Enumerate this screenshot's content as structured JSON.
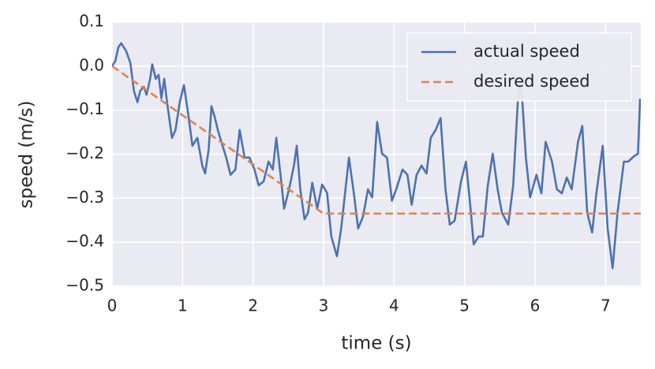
{
  "chart_data": {
    "type": "line",
    "x_label": "time (s)",
    "y_label": "speed (m/s)",
    "xlim": [
      0,
      7.5
    ],
    "ylim": [
      -0.5,
      0.1
    ],
    "xticks": [
      0,
      1,
      2,
      3,
      4,
      5,
      6,
      7
    ],
    "yticks": [
      {
        "value": -0.5,
        "label": "−0.5"
      },
      {
        "value": -0.4,
        "label": "−0.4"
      },
      {
        "value": -0.3,
        "label": "−0.3"
      },
      {
        "value": -0.2,
        "label": "−0.2"
      },
      {
        "value": -0.1,
        "label": "−0.1"
      },
      {
        "value": 0,
        "label": "0.0"
      },
      0.1
    ],
    "grid": true,
    "legend": "upper right",
    "series": [
      {
        "name": "actual speed",
        "color": "#4c72b0",
        "style": "solid",
        "x": [
          0,
          0.045,
          0.09,
          0.13,
          0.2,
          0.26,
          0.31,
          0.36,
          0.4,
          0.45,
          0.49,
          0.54,
          0.57,
          0.62,
          0.66,
          0.7,
          0.74,
          0.78,
          0.85,
          0.9,
          0.96,
          1.02,
          1.08,
          1.14,
          1.21,
          1.28,
          1.32,
          1.37,
          1.41,
          1.46,
          1.5,
          1.55,
          1.62,
          1.68,
          1.75,
          1.81,
          1.88,
          1.95,
          2.02,
          2.08,
          2.15,
          2.22,
          2.28,
          2.33,
          2.4,
          2.44,
          2.51,
          2.58,
          2.62,
          2.67,
          2.73,
          2.78,
          2.84,
          2.91,
          2.98,
          3.05,
          3.11,
          3.19,
          3.25,
          3.36,
          3.43,
          3.49,
          3.56,
          3.63,
          3.69,
          3.76,
          3.83,
          3.9,
          3.97,
          4.03,
          4.12,
          4.19,
          4.25,
          4.32,
          4.39,
          4.46,
          4.52,
          4.59,
          4.66,
          4.73,
          4.79,
          4.86,
          4.95,
          5.02,
          5.08,
          5.13,
          5.2,
          5.26,
          5.33,
          5.4,
          5.47,
          5.53,
          5.62,
          5.69,
          5.755,
          5.8,
          5.87,
          5.93,
          6.02,
          6.09,
          6.15,
          6.24,
          6.31,
          6.38,
          6.45,
          6.52,
          6.61,
          6.67,
          6.74,
          6.81,
          6.87,
          6.96,
          7.03,
          7.1,
          7.17,
          7.26,
          7.32,
          7.41,
          7.46,
          7.49
        ],
        "values": [
          0,
          0.011,
          0.043,
          0.052,
          0.034,
          0.007,
          -0.056,
          -0.082,
          -0.056,
          -0.047,
          -0.065,
          -0.029,
          0.004,
          -0.029,
          -0.02,
          -0.073,
          -0.029,
          -0.082,
          -0.163,
          -0.145,
          -0.082,
          -0.043,
          -0.109,
          -0.181,
          -0.163,
          -0.226,
          -0.244,
          -0.19,
          -0.091,
          -0.118,
          -0.145,
          -0.172,
          -0.208,
          -0.247,
          -0.235,
          -0.145,
          -0.208,
          -0.208,
          -0.235,
          -0.271,
          -0.262,
          -0.217,
          -0.235,
          -0.163,
          -0.262,
          -0.324,
          -0.28,
          -0.226,
          -0.181,
          -0.28,
          -0.348,
          -0.333,
          -0.265,
          -0.324,
          -0.269,
          -0.288,
          -0.387,
          -0.432,
          -0.369,
          -0.208,
          -0.289,
          -0.369,
          -0.342,
          -0.28,
          -0.298,
          -0.127,
          -0.199,
          -0.208,
          -0.306,
          -0.28,
          -0.235,
          -0.247,
          -0.315,
          -0.247,
          -0.226,
          -0.244,
          -0.163,
          -0.145,
          -0.118,
          -0.28,
          -0.36,
          -0.351,
          -0.262,
          -0.217,
          -0.315,
          -0.405,
          -0.387,
          -0.387,
          -0.271,
          -0.199,
          -0.28,
          -0.333,
          -0.36,
          -0.271,
          -0.082,
          -0.029,
          -0.208,
          -0.298,
          -0.247,
          -0.289,
          -0.172,
          -0.217,
          -0.28,
          -0.289,
          -0.253,
          -0.28,
          -0.172,
          -0.136,
          -0.333,
          -0.378,
          -0.289,
          -0.181,
          -0.369,
          -0.459,
          -0.333,
          -0.217,
          -0.217,
          -0.204,
          -0.199,
          -0.074
        ]
      },
      {
        "name": "desired speed",
        "color": "#dd8452",
        "style": "dashed",
        "x": [
          0,
          3,
          7.5
        ],
        "values": [
          0,
          -0.335,
          -0.335
        ]
      }
    ]
  }
}
